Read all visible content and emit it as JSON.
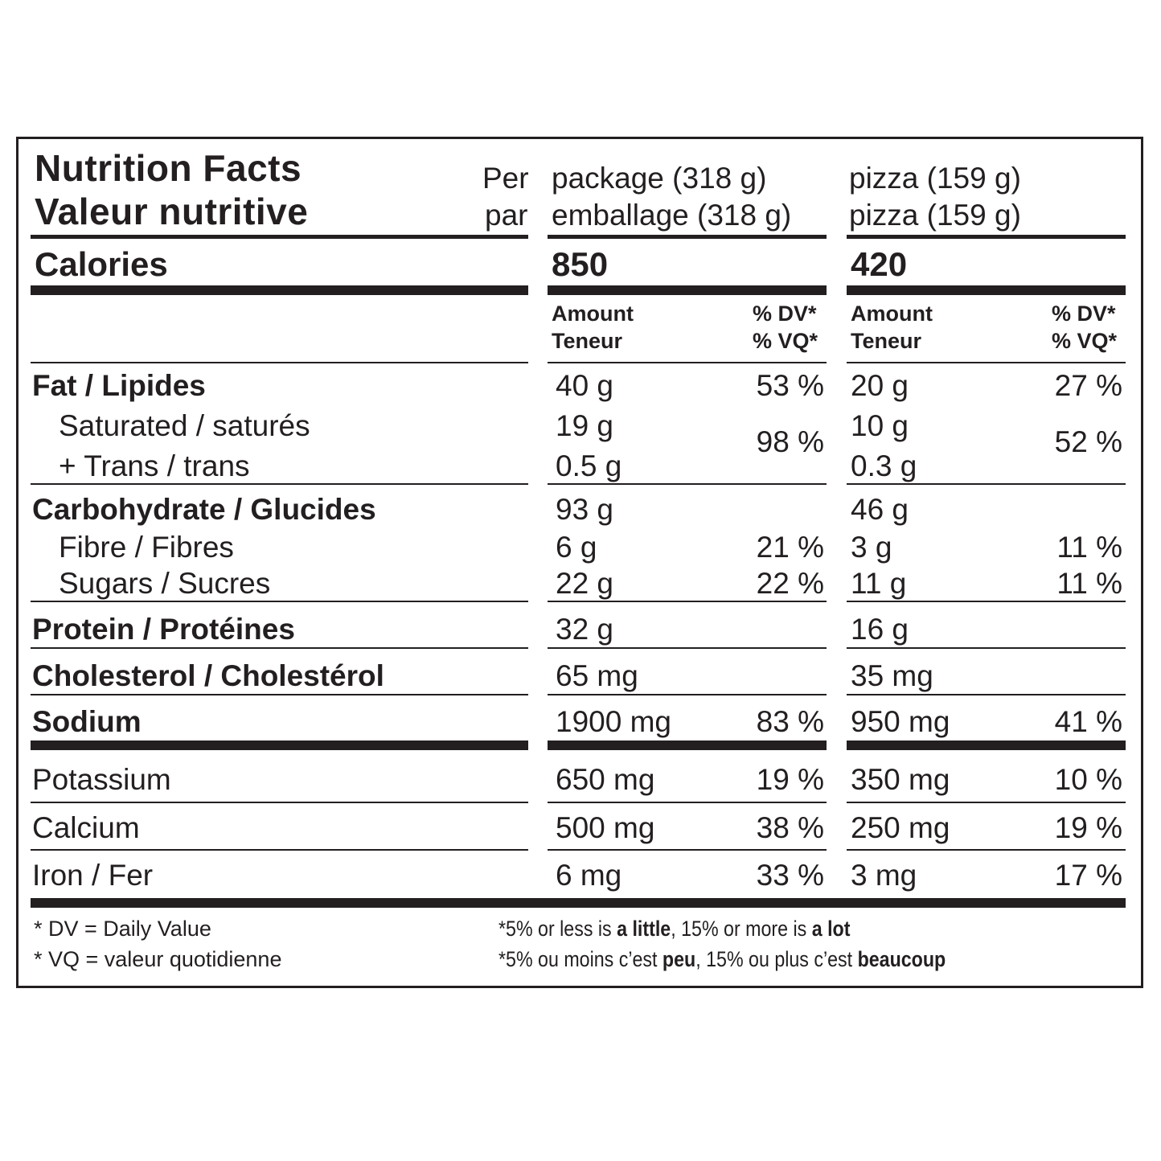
{
  "title": {
    "en": "Nutrition Facts",
    "fr": "Valeur nutritive"
  },
  "serving": {
    "per_en": "Per",
    "per_fr": "par",
    "col1_en": "package (318 g)",
    "col1_fr": "emballage (318 g)",
    "col2_en": "pizza (159 g)",
    "col2_fr": "pizza (159 g)"
  },
  "calories": {
    "label": "Calories",
    "col1": "850",
    "col2": "420"
  },
  "headers": {
    "amount": "Amount",
    "teneur": "Teneur",
    "dv": "% DV*",
    "vq": "% VQ*"
  },
  "nutrients": {
    "fat": {
      "label": "Fat / Lipides",
      "c1": "40 g",
      "p1": "53 %",
      "c2": "20 g",
      "p2": "27 %"
    },
    "saturated": {
      "label": "Saturated / saturés",
      "c1": "19 g",
      "c2": "10 g"
    },
    "trans": {
      "label": "+ Trans / trans",
      "c1": "0.5 g",
      "c2": "0.3 g"
    },
    "sat_trans_pct": {
      "p1": "98 %",
      "p2": "52 %"
    },
    "carb": {
      "label": "Carbohydrate / Glucides",
      "c1": "93 g",
      "c2": "46 g"
    },
    "fibre": {
      "label": "Fibre / Fibres",
      "c1": "6 g",
      "p1": "21 %",
      "c2": "3 g",
      "p2": "11 %"
    },
    "sugars": {
      "label": "Sugars / Sucres",
      "c1": "22 g",
      "p1": "22 %",
      "c2": "11 g",
      "p2": "11 %"
    },
    "protein": {
      "label": "Protein / Protéines",
      "c1": "32 g",
      "c2": "16 g"
    },
    "cholesterol": {
      "label": "Cholesterol / Cholestérol",
      "c1": "65 mg",
      "c2": "35 mg"
    },
    "sodium": {
      "label": "Sodium",
      "c1": "1900 mg",
      "p1": "83 %",
      "c2": "950 mg",
      "p2": "41 %"
    },
    "potassium": {
      "label": "Potassium",
      "c1": "650 mg",
      "p1": "19 %",
      "c2": "350 mg",
      "p2": "10 %"
    },
    "calcium": {
      "label": "Calcium",
      "c1": "500 mg",
      "p1": "38 %",
      "c2": "250 mg",
      "p2": "19 %"
    },
    "iron": {
      "label": "Iron / Fer",
      "c1": "6 mg",
      "p1": "33 %",
      "c2": "3 mg",
      "p2": "17 %"
    }
  },
  "footnotes": {
    "dv": "* DV = Daily Value",
    "vq": "* VQ = valeur quotidienne",
    "en": {
      "a": "*5% or less is ",
      "b": "a little",
      "c": ", 15% or more is ",
      "d": "a lot"
    },
    "fr": {
      "a": "*5% ou moins c’est ",
      "b": "peu",
      "c": ", 15% ou plus c’est ",
      "d": "beaucoup"
    }
  },
  "colors": {
    "ink": "#231f20",
    "background": "#ffffff"
  }
}
